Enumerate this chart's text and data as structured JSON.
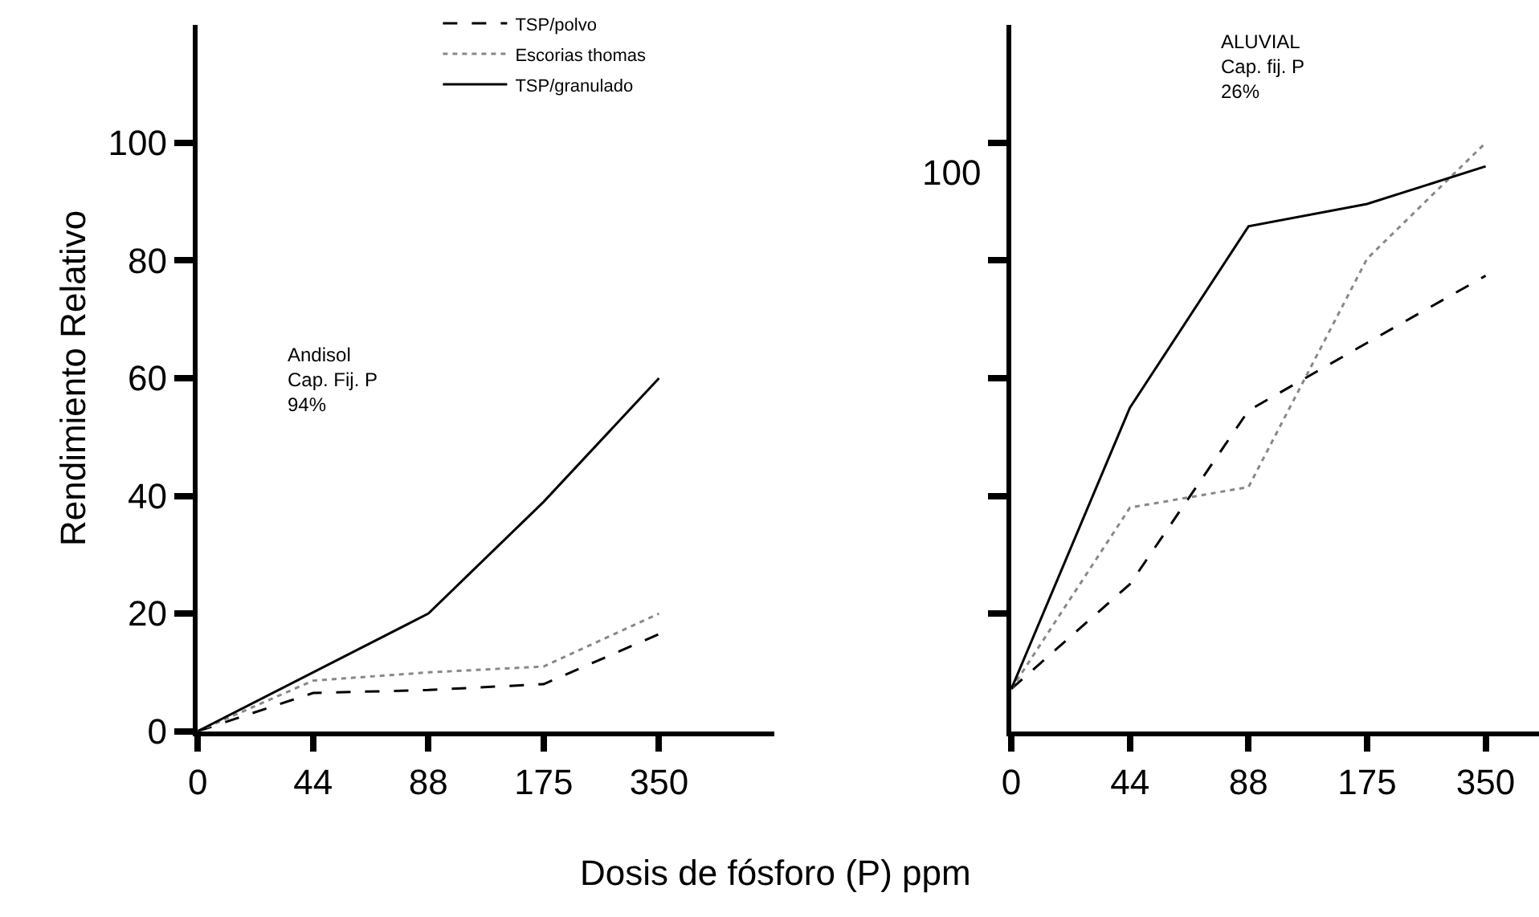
{
  "chart_data": [
    {
      "type": "line",
      "categories": [
        "0",
        "44",
        "88",
        "175",
        "350"
      ],
      "ylabel": "Rendimiento Relativo",
      "xlabel": "Dosis de fósforo (P) ppm",
      "ylim": [
        0,
        120
      ],
      "yticks": [
        0,
        20,
        40,
        60,
        80,
        100
      ],
      "legend": "top",
      "marker": "none",
      "annotations": [
        "Andisol\nCap. Fij. P\n94%"
      ],
      "series": [
        {
          "name": "TSP/polvo",
          "color": "#000000",
          "line_style": "dashed",
          "values": [
            0,
            6.5,
            7,
            8,
            16.5
          ]
        },
        {
          "name": "Escorias thomas",
          "color": "#888888",
          "line_style": "dotted",
          "values": [
            0,
            8.6,
            10,
            11,
            20
          ]
        },
        {
          "name": "TSP/granulado",
          "color": "#000000",
          "line_style": "solid",
          "values": [
            0,
            10,
            20,
            39,
            60
          ]
        }
      ]
    },
    {
      "type": "line",
      "categories": [
        "0",
        "44",
        "88",
        "175",
        "350"
      ],
      "ylim": [
        0,
        120
      ],
      "yticks": [
        {
          "value": 20,
          "label": null
        },
        {
          "value": 40,
          "label": null
        },
        {
          "value": 60,
          "label": null
        },
        {
          "value": 80,
          "label": null
        },
        {
          "value": 100,
          "label": null
        }
      ],
      "tick_labels": "x",
      "legend": false,
      "marker": "none",
      "annotations": [
        "ALUVIAL\nCap. fij. P\n26%",
        "100"
      ],
      "series": [
        {
          "color": "#000000",
          "line_style": "dashed",
          "values": [
            7.2,
            25,
            54.5,
            66,
            77.4
          ]
        },
        {
          "color": "#888888",
          "line_style": "dotted",
          "values": [
            7.2,
            38,
            41.5,
            80.3,
            100
          ]
        },
        {
          "color": "#000000",
          "line_style": "solid",
          "values": [
            7.2,
            55,
            85.8,
            89.6,
            96
          ]
        }
      ]
    }
  ]
}
